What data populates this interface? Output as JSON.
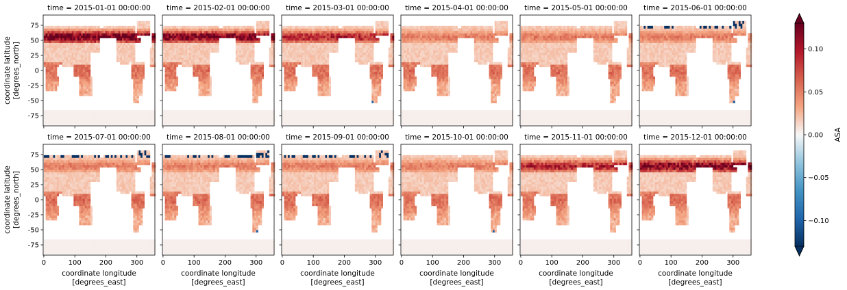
{
  "chart_data": {
    "type": "heatmap",
    "layout": "facet grid 2 rows x 6 columns",
    "panels": [
      {
        "title": "time = 2015-01-01 00:00:00"
      },
      {
        "title": "time = 2015-02-01 00:00:00"
      },
      {
        "title": "time = 2015-03-01 00:00:00"
      },
      {
        "title": "time = 2015-04-01 00:00:00"
      },
      {
        "title": "time = 2015-05-01 00:00:00"
      },
      {
        "title": "time = 2015-06-01 00:00:00"
      },
      {
        "title": "time = 2015-07-01 00:00:00"
      },
      {
        "title": "time = 2015-08-01 00:00:00"
      },
      {
        "title": "time = 2015-09-01 00:00:00"
      },
      {
        "title": "time = 2015-10-01 00:00:00"
      },
      {
        "title": "time = 2015-11-01 00:00:00"
      },
      {
        "title": "time = 2015-12-01 00:00:00"
      }
    ],
    "xlabel": [
      "coordinate longitude",
      "[degrees_east]"
    ],
    "ylabel": [
      "coordinate latitude",
      "[degrees_north]"
    ],
    "xlim": [
      -2,
      358
    ],
    "ylim": [
      -92,
      92
    ],
    "xticks": [
      0,
      100,
      200,
      300
    ],
    "yticks": [
      75,
      50,
      25,
      0,
      -25,
      -50,
      -75
    ],
    "colorbar": {
      "label": "ASA",
      "cmap": "RdBu_r",
      "vmin": -0.13,
      "vmax": 0.13,
      "ticks": [
        0.1,
        0.05,
        0.0,
        -0.05,
        -0.1
      ],
      "tick_labels": [
        "0.10",
        "0.05",
        "0.00",
        "−0.05",
        "−0.10"
      ],
      "extend": "both"
    },
    "colors": {
      "strong_negative": "#053061",
      "negative": "#4393c3",
      "neutral": "#f7f7f7",
      "positive": "#f4a582",
      "strong_positive": "#67001f"
    }
  }
}
